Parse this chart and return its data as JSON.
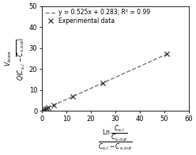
{
  "slope": 0.525,
  "intercept": 0.283,
  "x_line_start": 0,
  "x_line_end": 52,
  "exp_x": [
    0.4,
    0.8,
    1.3,
    2.0,
    2.5,
    5.0,
    12.5,
    25.0,
    51.0
  ],
  "exp_y": [
    0.5,
    0.7,
    1.0,
    1.3,
    1.6,
    2.9,
    6.9,
    13.4,
    27.1
  ],
  "xlim": [
    0,
    60
  ],
  "ylim": [
    0,
    50
  ],
  "xticks": [
    0,
    10,
    20,
    30,
    40,
    50,
    60
  ],
  "yticks": [
    0,
    10,
    20,
    30,
    40,
    50
  ],
  "line_color": "#777777",
  "marker_color": "#333333",
  "background": "#ffffff",
  "legend_eq": "y = 0.525x + 0.283; R² = 0.99",
  "legend_data": "Experimental data",
  "tick_fontsize": 6,
  "legend_fontsize": 5.5
}
